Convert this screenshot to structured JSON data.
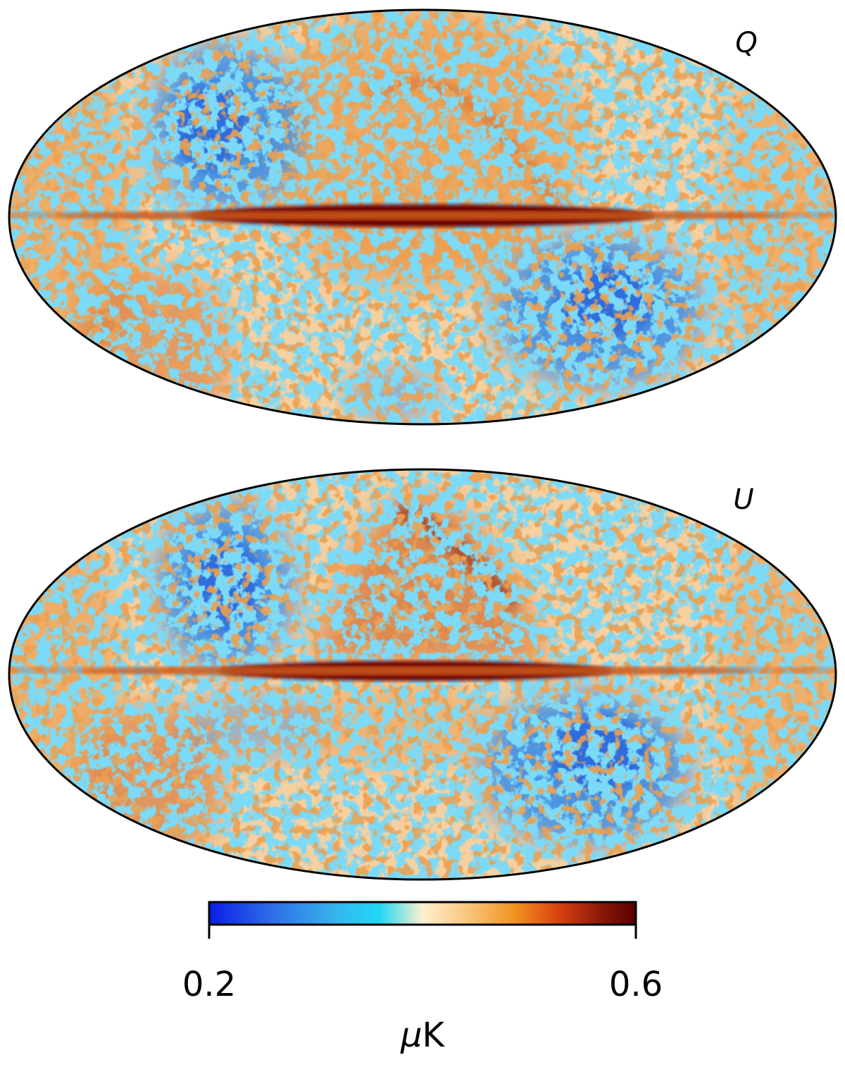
{
  "maps": [
    {
      "id": "q",
      "label": "Q"
    },
    {
      "id": "u",
      "label": "U"
    }
  ],
  "colorbar": {
    "min": 0.2,
    "max": 0.6,
    "min_label": "0.2",
    "max_label": "0.6",
    "unit_mu": "μ",
    "unit_k": "K",
    "stops": [
      {
        "offset": 0.0,
        "color": "#0a1ee8"
      },
      {
        "offset": 0.15,
        "color": "#2f6fe6"
      },
      {
        "offset": 0.3,
        "color": "#36b6ee"
      },
      {
        "offset": 0.4,
        "color": "#20d8f2"
      },
      {
        "offset": 0.5,
        "color": "#fff0d0"
      },
      {
        "offset": 0.62,
        "color": "#f8c070"
      },
      {
        "offset": 0.72,
        "color": "#f0901e"
      },
      {
        "offset": 0.82,
        "color": "#d84010"
      },
      {
        "offset": 0.92,
        "color": "#8a1808"
      },
      {
        "offset": 1.0,
        "color": "#5a0000"
      }
    ]
  },
  "palette": {
    "cold": "#3a8ee8",
    "deep_cold": "#2a66dc",
    "mid": "#f5d0a0",
    "warm": "#eb9a4a",
    "hot": "#cc5a1a",
    "plane": "#6a0000"
  }
}
